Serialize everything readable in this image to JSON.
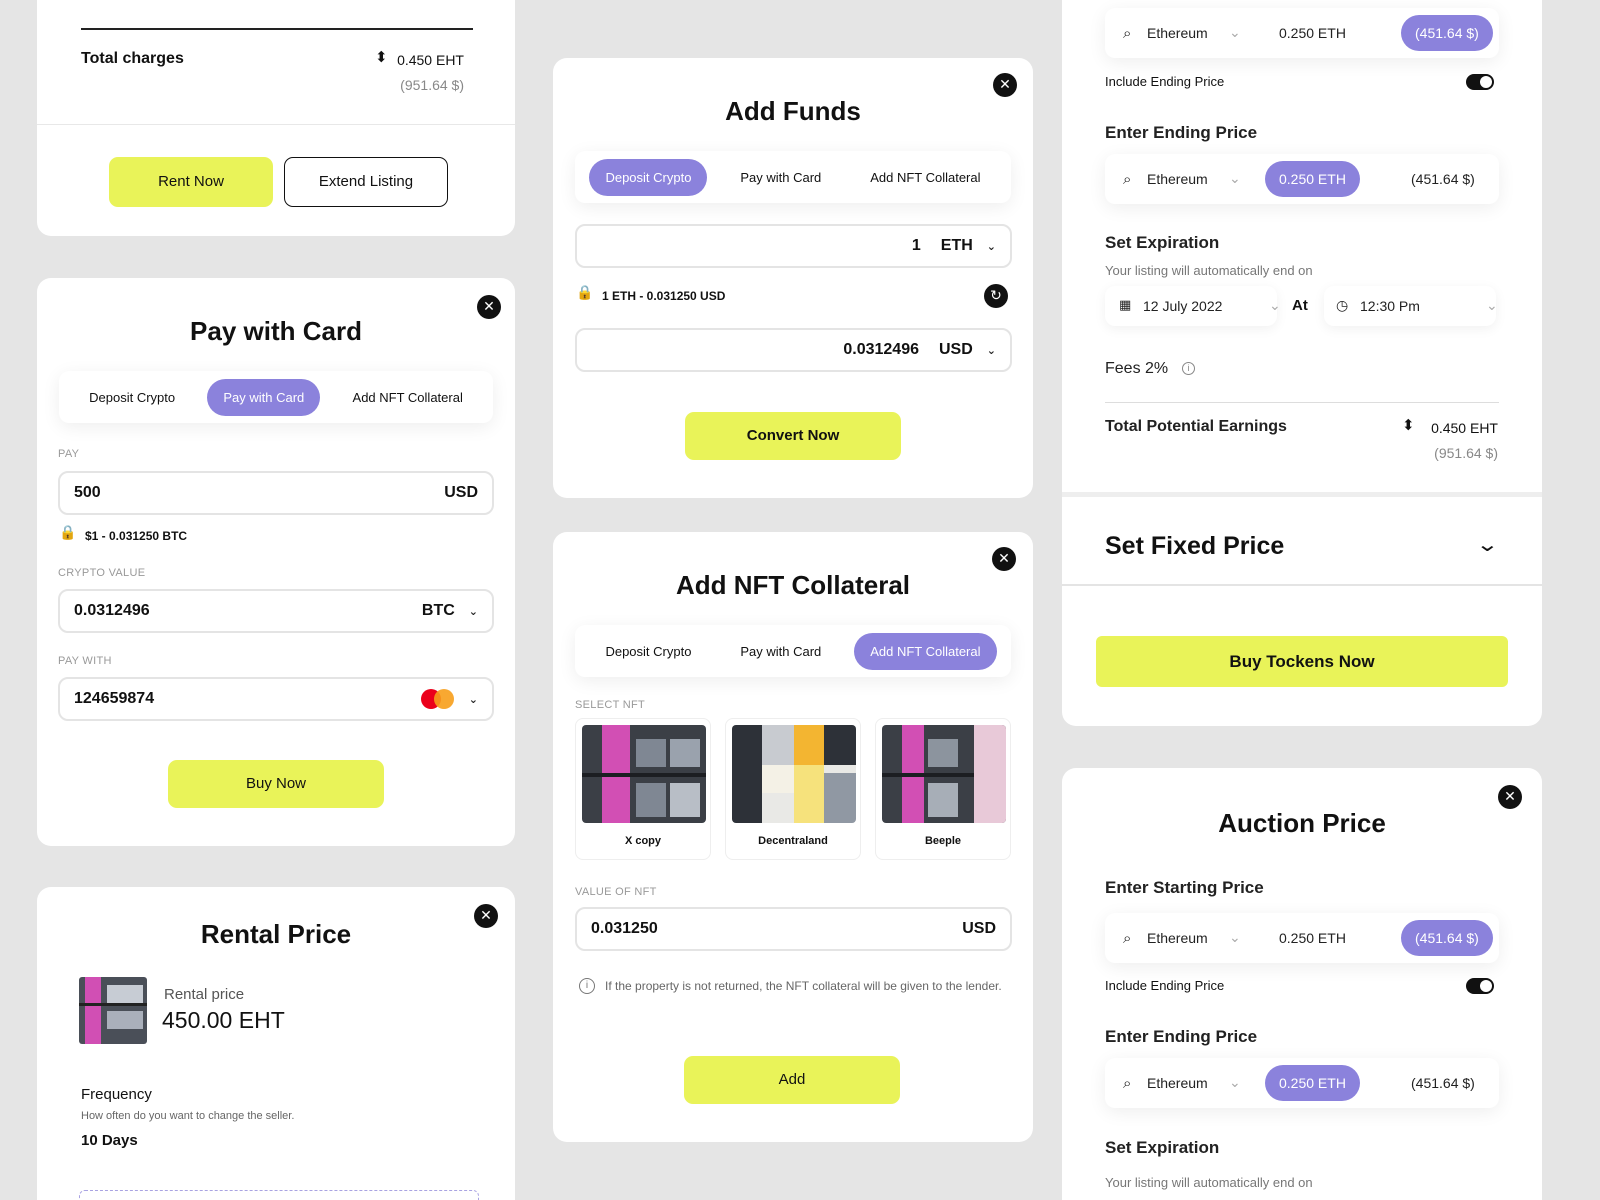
{
  "colors": {
    "accent_yellow": "#e9f359",
    "accent_purple": "#8b82dc",
    "background": "#e5e5e5"
  },
  "rent_card": {
    "total_label": "Total charges",
    "amount": "0.450 EHT",
    "usd": "(951.64 $)",
    "rent_btn": "Rent Now",
    "extend_btn": "Extend Listing"
  },
  "pay_card": {
    "title": "Pay with Card",
    "tabs": [
      "Deposit Crypto",
      "Pay with Card",
      "Add NFT Collateral"
    ],
    "active_tab": 1,
    "pay_label": "PAY",
    "pay_value": "500",
    "pay_currency": "USD",
    "rate": "$1 - 0.031250 BTC",
    "crypto_label": "CRYPTO VALUE",
    "crypto_value": "0.0312496",
    "crypto_currency": "BTC",
    "paywith_label": "PAY WITH",
    "card_number": "124659874",
    "buy_btn": "Buy Now"
  },
  "rental_card": {
    "title": "Rental Price",
    "price_label": "Rental price",
    "price": "450.00 EHT",
    "freq_label": "Frequency",
    "freq_hint": "How often do you want to change the seller.",
    "freq_value": "10 Days"
  },
  "funds_card": {
    "title": "Add Funds",
    "tabs": [
      "Deposit Crypto",
      "Pay with Card",
      "Add NFT Collateral"
    ],
    "active_tab": 0,
    "amount": "1",
    "amount_currency": "ETH",
    "rate": "1 ETH - 0.031250 USD",
    "converted": "0.0312496",
    "converted_currency": "USD",
    "convert_btn": "Convert Now"
  },
  "collateral_card": {
    "title": "Add NFT Collateral",
    "tabs": [
      "Deposit Crypto",
      "Pay with Card",
      "Add NFT Collateral"
    ],
    "active_tab": 2,
    "select_label": "SELECT NFT",
    "nfts": [
      {
        "name": "X copy"
      },
      {
        "name": "Decentraland"
      },
      {
        "name": "Beeple"
      }
    ],
    "value_label": "VALUE OF NFT",
    "value": "0.031250",
    "value_currency": "USD",
    "info": "If the property is not returned, the NFT collateral will be given to the lender.",
    "add_btn": "Add"
  },
  "listing_card": {
    "top_pill": {
      "coin": "Ethereum",
      "eth": "0.250 ETH",
      "usd": "(451.64 $)"
    },
    "include_label": "Include Ending Price",
    "ending_label": "Enter Ending Price",
    "end_pill": {
      "coin": "Ethereum",
      "eth": "0.250 ETH",
      "usd": "(451.64 $)"
    },
    "exp_label": "Set Expiration",
    "exp_hint": "Your listing will automatically end on",
    "date": "12 July 2022",
    "at": "At",
    "time": "12:30 Pm",
    "fees": "Fees 2%",
    "earn_label": "Total Potential Earnings",
    "earn_amount": "0.450 EHT",
    "earn_usd": "(951.64 $)",
    "fixed_label": "Set Fixed Price",
    "buy_btn": "Buy Tockens Now"
  },
  "auction_card": {
    "title": "Auction Price",
    "start_label": "Enter Starting Price",
    "start_pill": {
      "coin": "Ethereum",
      "eth": "0.250 ETH",
      "usd": "(451.64 $)"
    },
    "include_label": "Include Ending Price",
    "ending_label": "Enter Ending Price",
    "end_pill": {
      "coin": "Ethereum",
      "eth": "0.250 ETH",
      "usd": "(451.64 $)"
    },
    "exp_label": "Set Expiration",
    "exp_hint": "Your listing will automatically end on"
  }
}
